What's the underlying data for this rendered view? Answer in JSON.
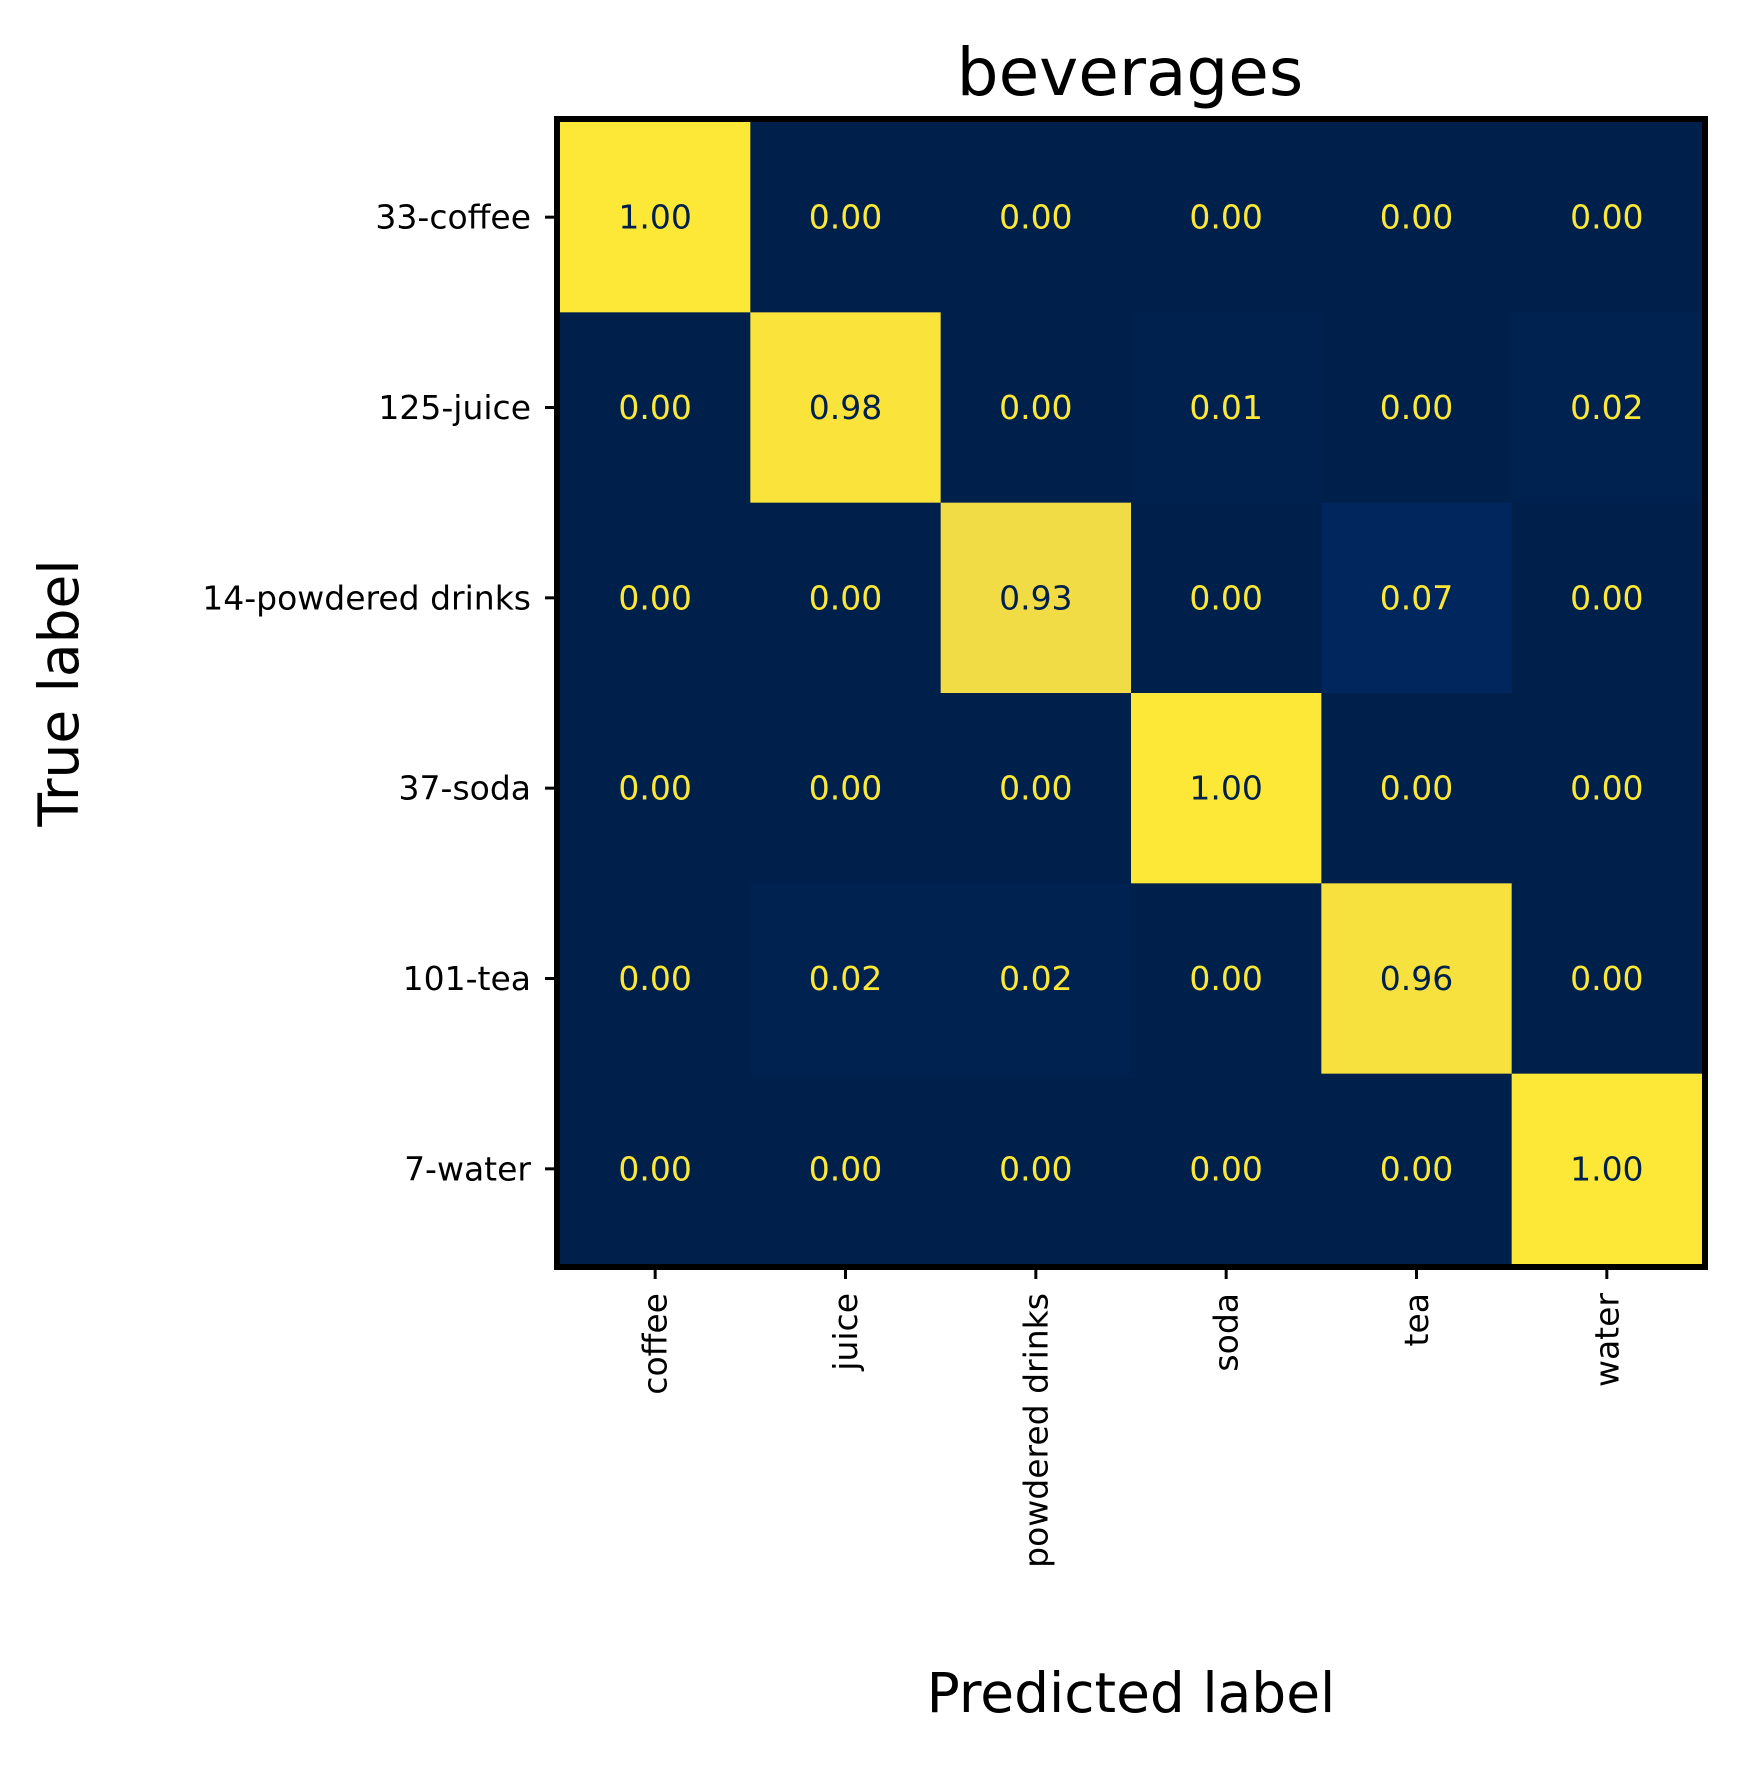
{
  "chart_data": {
    "type": "heatmap",
    "title": "beverages",
    "xlabel": "Predicted label",
    "ylabel": "True label",
    "x_categories": [
      "coffee",
      "juice",
      "powdered drinks",
      "soda",
      "tea",
      "water"
    ],
    "y_categories": [
      "33-coffee",
      "125-juice",
      "14-powdered drinks",
      "37-soda",
      "101-tea",
      "7-water"
    ],
    "matrix": [
      [
        1.0,
        0.0,
        0.0,
        0.0,
        0.0,
        0.0
      ],
      [
        0.0,
        0.98,
        0.0,
        0.01,
        0.0,
        0.02
      ],
      [
        0.0,
        0.0,
        0.93,
        0.0,
        0.07,
        0.0
      ],
      [
        0.0,
        0.0,
        0.0,
        1.0,
        0.0,
        0.0
      ],
      [
        0.0,
        0.02,
        0.02,
        0.0,
        0.96,
        0.0
      ],
      [
        0.0,
        0.0,
        0.0,
        0.0,
        0.0,
        1.0
      ]
    ],
    "value_format": "2 decimals",
    "colormap": "cividis",
    "vmin": 0,
    "vmax": 1,
    "grid": false,
    "x_tick_rotation": "vertical",
    "colors": {
      "low": "#00204c",
      "high": "#fde737",
      "text_on_dark": "#fde737",
      "text_on_light": "#00204c"
    }
  }
}
